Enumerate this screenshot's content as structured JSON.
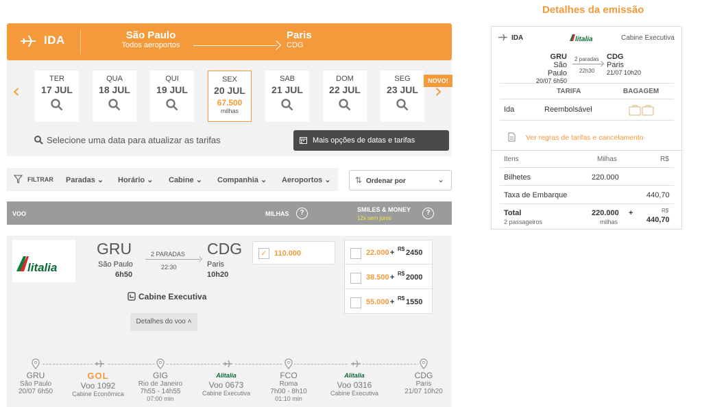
{
  "header": {
    "direction": "IDA",
    "origin_city": "São Paulo",
    "origin_sub": "Todos aeroportos",
    "dest_city": "Paris",
    "dest_sub": "CDG"
  },
  "dates": [
    {
      "weekday": "TER",
      "date": "17 JUL"
    },
    {
      "weekday": "QUA",
      "date": "18 JUL"
    },
    {
      "weekday": "QUI",
      "date": "19 JUL"
    },
    {
      "weekday": "SEX",
      "date": "20 JUL",
      "price": "67.500",
      "unit": "milhas",
      "selected": true
    },
    {
      "weekday": "SAB",
      "date": "21 JUL"
    },
    {
      "weekday": "DOM",
      "date": "22 JUL"
    },
    {
      "weekday": "SEG",
      "date": "23 JUL"
    }
  ],
  "date_hint": "Selecione uma data para atualizar as tarifas",
  "more_options": "Mais opções de datas e tarifas",
  "novo_badge": "NOVO!",
  "filters": {
    "label": "FILTRAR",
    "items": [
      "Paradas",
      "Horário",
      "Cabine",
      "Companhia",
      "Aeroportos"
    ],
    "order_label": "Ordenar por"
  },
  "table_header": {
    "voo": "VOO",
    "milhas": "MILHAS",
    "smiles_money": "SMILES & MONEY",
    "installments": "12x sem juros"
  },
  "flight": {
    "airline": "Alitalia",
    "origin_code": "GRU",
    "origin_city": "São Paulo",
    "origin_time": "6h50",
    "stops": "2 PARADAS",
    "duration": "22:30",
    "dest_code": "CDG",
    "dest_city": "Paris",
    "dest_time": "10h20",
    "miles": "110.000",
    "cabin": "Cabine Executiva",
    "details": "Detalhes do voo",
    "mix": [
      {
        "miles": "22.000",
        "plus": "+",
        "currency": "R$",
        "amount": "2450"
      },
      {
        "miles": "38.500",
        "plus": "+",
        "currency": "R$",
        "amount": "2000"
      },
      {
        "miles": "55.000",
        "plus": "+",
        "currency": "R$",
        "amount": "1550"
      }
    ]
  },
  "timeline": [
    {
      "l1": "GRU",
      "l2": "São Paulo",
      "l3": "20/07 6h50",
      "l4": "",
      "type": "pin"
    },
    {
      "l1": "GOL",
      "l2": "Voo 1092",
      "l3": "Cabine Econômica",
      "l4": "",
      "type": "gol"
    },
    {
      "l1": "GIG",
      "l2": "Rio de Janeiro",
      "l3": "7h55 - 14h55",
      "l4": "07:00 min",
      "type": "pin"
    },
    {
      "l1": "Alitalia",
      "l2": "Voo 0673",
      "l3": "Cabine Executiva",
      "l4": "",
      "type": "az"
    },
    {
      "l1": "FCO",
      "l2": "Roma",
      "l3": "7h00 - 8h10",
      "l4": "01:10 min",
      "type": "pin"
    },
    {
      "l1": "Alitalia",
      "l2": "Voo 0316",
      "l3": "Cabine Executiva",
      "l4": "",
      "type": "az"
    },
    {
      "l1": "CDG",
      "l2": "Paris",
      "l3": "21/07 10h20",
      "l4": "",
      "type": "pin"
    }
  ],
  "summary": {
    "title": "Detalhes da emissão",
    "direction": "IDA",
    "airline": "Alitalia",
    "cabin": "Cabine Executiva",
    "origin_code": "GRU",
    "origin_city": "São Paulo",
    "origin_dt": "20/07 6h50",
    "stops": "2 paradas",
    "duration": "22h30",
    "dest_code": "CDG",
    "dest_city": "Paris",
    "dest_dt": "21/07 10h20",
    "col_tarifa": "TARIFA",
    "col_bagagem": "BAGAGEM",
    "row_label": "Ida",
    "row_fare": "Reembolsável",
    "rules_link": "Ver regras de tarifas e cancelamento",
    "items_header": "Itens",
    "miles_header": "Milhas",
    "brl_header": "R$",
    "tickets_label": "Bilhetes",
    "tickets_miles": "220.000",
    "tax_label": "Taxa de Embarque",
    "tax_brl": "440,70",
    "total_label": "Total",
    "total_sub": "2 passageiros",
    "total_miles": "220.000",
    "total_miles_unit": "milhas",
    "total_plus": "+",
    "total_currency": "R$",
    "total_brl": "440,70"
  },
  "colors": {
    "accent": "#f59a3b",
    "dark": "#4a4a4a",
    "grey_header": "#9b9b9b"
  }
}
